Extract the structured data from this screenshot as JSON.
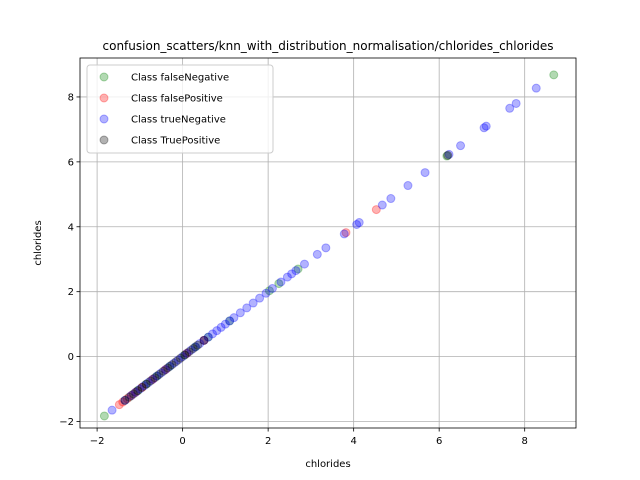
{
  "chart_data": {
    "type": "scatter",
    "title": "confusion_scatters/knn_with_distribution_normalisation/chlorides_chlorides",
    "xlabel": "chlorides",
    "ylabel": "chlorides",
    "xlim": [
      -2.4,
      9.2
    ],
    "ylim": [
      -2.2,
      9.2
    ],
    "xticks": [
      -2,
      0,
      2,
      4,
      6,
      8
    ],
    "yticks": [
      -2,
      0,
      2,
      4,
      6,
      8
    ],
    "grid": true,
    "legend_position": "top-left",
    "series": [
      {
        "name": "Class falseNegative",
        "color": "#008000",
        "points": [
          [
            -1.83,
            -1.83
          ],
          [
            -1.05,
            -1.05
          ],
          [
            -0.85,
            -0.85
          ],
          [
            -0.6,
            -0.6
          ],
          [
            -0.3,
            -0.3
          ],
          [
            0.05,
            0.05
          ],
          [
            0.3,
            0.3
          ],
          [
            0.6,
            0.6
          ],
          [
            1.1,
            1.1
          ],
          [
            2.03,
            2.03
          ],
          [
            2.25,
            2.25
          ],
          [
            2.7,
            2.7
          ],
          [
            6.18,
            6.18
          ],
          [
            8.68,
            8.68
          ]
        ]
      },
      {
        "name": "Class falsePositive",
        "color": "#ff0000",
        "points": [
          [
            -1.48,
            -1.48
          ],
          [
            -1.4,
            -1.4
          ],
          [
            -1.3,
            -1.3
          ],
          [
            -1.2,
            -1.2
          ],
          [
            -1.1,
            -1.1
          ],
          [
            -0.95,
            -0.95
          ],
          [
            -0.7,
            -0.7
          ],
          [
            -0.4,
            -0.4
          ],
          [
            0.1,
            0.1
          ],
          [
            0.5,
            0.5
          ],
          [
            3.82,
            3.82
          ],
          [
            4.53,
            4.53
          ]
        ]
      },
      {
        "name": "Class trueNegative",
        "color": "#0000ff",
        "points": [
          [
            -1.65,
            -1.65
          ],
          [
            -1.35,
            -1.35
          ],
          [
            -1.2,
            -1.2
          ],
          [
            -1.1,
            -1.1
          ],
          [
            -1.0,
            -1.0
          ],
          [
            -0.9,
            -0.9
          ],
          [
            -0.8,
            -0.8
          ],
          [
            -0.7,
            -0.7
          ],
          [
            -0.6,
            -0.6
          ],
          [
            -0.5,
            -0.5
          ],
          [
            -0.4,
            -0.4
          ],
          [
            -0.3,
            -0.3
          ],
          [
            -0.2,
            -0.2
          ],
          [
            -0.1,
            -0.1
          ],
          [
            0.0,
            0.0
          ],
          [
            0.1,
            0.1
          ],
          [
            0.2,
            0.2
          ],
          [
            0.3,
            0.3
          ],
          [
            0.4,
            0.4
          ],
          [
            0.5,
            0.5
          ],
          [
            0.6,
            0.6
          ],
          [
            0.7,
            0.7
          ],
          [
            0.8,
            0.8
          ],
          [
            0.9,
            0.9
          ],
          [
            1.0,
            1.0
          ],
          [
            1.1,
            1.1
          ],
          [
            1.2,
            1.2
          ],
          [
            1.35,
            1.35
          ],
          [
            1.5,
            1.5
          ],
          [
            1.65,
            1.65
          ],
          [
            1.8,
            1.8
          ],
          [
            1.95,
            1.95
          ],
          [
            2.1,
            2.1
          ],
          [
            2.3,
            2.3
          ],
          [
            2.45,
            2.45
          ],
          [
            2.55,
            2.55
          ],
          [
            2.65,
            2.65
          ],
          [
            2.85,
            2.85
          ],
          [
            3.15,
            3.15
          ],
          [
            3.35,
            3.35
          ],
          [
            3.78,
            3.78
          ],
          [
            4.07,
            4.07
          ],
          [
            4.13,
            4.13
          ],
          [
            4.67,
            4.67
          ],
          [
            4.87,
            4.87
          ],
          [
            5.27,
            5.27
          ],
          [
            5.67,
            5.67
          ],
          [
            6.23,
            6.23
          ],
          [
            6.5,
            6.5
          ],
          [
            7.05,
            7.05
          ],
          [
            7.1,
            7.1
          ],
          [
            7.65,
            7.65
          ],
          [
            7.8,
            7.8
          ],
          [
            8.27,
            8.27
          ]
        ]
      },
      {
        "name": "Class TruePositive",
        "color": "#000000",
        "points": [
          [
            -1.35,
            -1.35
          ],
          [
            -1.25,
            -1.25
          ],
          [
            -1.15,
            -1.15
          ],
          [
            -1.05,
            -1.05
          ],
          [
            -0.95,
            -0.95
          ],
          [
            -0.85,
            -0.85
          ],
          [
            -0.75,
            -0.75
          ],
          [
            -0.65,
            -0.65
          ],
          [
            -0.55,
            -0.55
          ],
          [
            -0.45,
            -0.45
          ],
          [
            -0.35,
            -0.35
          ],
          [
            -0.25,
            -0.25
          ],
          [
            -0.15,
            -0.15
          ],
          [
            -0.05,
            -0.05
          ],
          [
            0.05,
            0.05
          ],
          [
            0.15,
            0.15
          ],
          [
            0.25,
            0.25
          ],
          [
            0.35,
            0.35
          ],
          [
            0.5,
            0.5
          ],
          [
            6.2,
            6.2
          ]
        ]
      }
    ]
  }
}
